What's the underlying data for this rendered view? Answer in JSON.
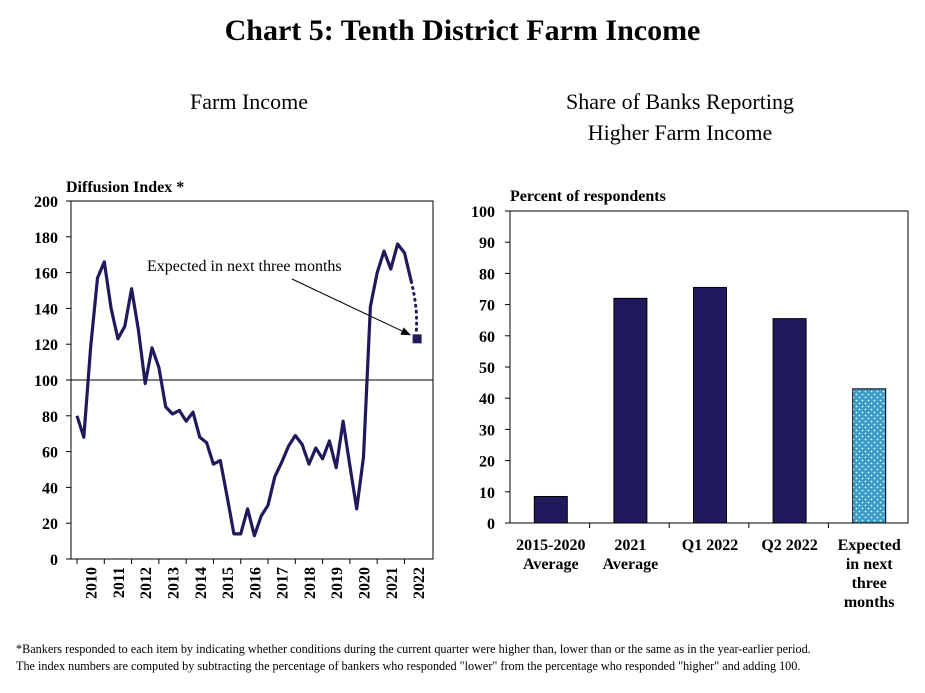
{
  "title": "Chart 5: Tenth District Farm Income",
  "footnote": {
    "line1": "*Bankers responded to each item by indicating whether conditions during the current quarter were higher than,  lower than or the same as in the year-earlier period.",
    "line2": "The index numbers are computed by subtracting the percentage of bankers who responded \"lower\" from the percentage who responded \"higher\" and adding 100."
  },
  "chart_data": [
    {
      "type": "line",
      "title": "Farm Income",
      "ylabel": "Diffusion  Index  *",
      "ylim": [
        0,
        200
      ],
      "yticks": [
        0,
        20,
        40,
        60,
        80,
        100,
        120,
        140,
        160,
        180,
        200
      ],
      "xticks": [
        "2010",
        "2011",
        "2012",
        "2013",
        "2014",
        "2015",
        "2016",
        "2017",
        "2018",
        "2019",
        "2020",
        "2021",
        "2022"
      ],
      "reference_line": 100,
      "grid": false,
      "color": "#1e1a5c",
      "series": [
        {
          "values": [
            {
              "x": "2010Q1",
              "y": 80
            },
            {
              "x": "2010Q2",
              "y": 68
            },
            {
              "x": "2010Q3",
              "y": 118
            },
            {
              "x": "2010Q4",
              "y": 157
            },
            {
              "x": "2011Q1",
              "y": 166
            },
            {
              "x": "2011Q2",
              "y": 140
            },
            {
              "x": "2011Q3",
              "y": 123
            },
            {
              "x": "2011Q4",
              "y": 130
            },
            {
              "x": "2012Q1",
              "y": 151
            },
            {
              "x": "2012Q2",
              "y": 128
            },
            {
              "x": "2012Q3",
              "y": 98
            },
            {
              "x": "2012Q4",
              "y": 118
            },
            {
              "x": "2013Q1",
              "y": 107
            },
            {
              "x": "2013Q2",
              "y": 85
            },
            {
              "x": "2013Q3",
              "y": 81
            },
            {
              "x": "2013Q4",
              "y": 83
            },
            {
              "x": "2014Q1",
              "y": 77
            },
            {
              "x": "2014Q2",
              "y": 82
            },
            {
              "x": "2014Q3",
              "y": 68
            },
            {
              "x": "2014Q4",
              "y": 65
            },
            {
              "x": "2015Q1",
              "y": 53
            },
            {
              "x": "2015Q2",
              "y": 55
            },
            {
              "x": "2015Q3",
              "y": 35
            },
            {
              "x": "2015Q4",
              "y": 14
            },
            {
              "x": "2016Q1",
              "y": 14
            },
            {
              "x": "2016Q2",
              "y": 28
            },
            {
              "x": "2016Q3",
              "y": 13
            },
            {
              "x": "2016Q4",
              "y": 24
            },
            {
              "x": "2017Q1",
              "y": 30
            },
            {
              "x": "2017Q2",
              "y": 46
            },
            {
              "x": "2017Q3",
              "y": 54
            },
            {
              "x": "2017Q4",
              "y": 63
            },
            {
              "x": "2018Q1",
              "y": 69
            },
            {
              "x": "2018Q2",
              "y": 64
            },
            {
              "x": "2018Q3",
              "y": 53
            },
            {
              "x": "2018Q4",
              "y": 62
            },
            {
              "x": "2019Q1",
              "y": 56
            },
            {
              "x": "2019Q2",
              "y": 66
            },
            {
              "x": "2019Q3",
              "y": 51
            },
            {
              "x": "2019Q4",
              "y": 77
            },
            {
              "x": "2020Q1",
              "y": 52
            },
            {
              "x": "2020Q2",
              "y": 28
            },
            {
              "x": "2020Q3",
              "y": 57
            },
            {
              "x": "2020Q4",
              "y": 141
            },
            {
              "x": "2021Q1",
              "y": 160
            },
            {
              "x": "2021Q2",
              "y": 172
            },
            {
              "x": "2021Q3",
              "y": 162
            },
            {
              "x": "2021Q4",
              "y": 176
            },
            {
              "x": "2022Q1",
              "y": 171
            },
            {
              "x": "2022Q2",
              "y": 155
            }
          ]
        }
      ],
      "expected": {
        "x": "2022Q3",
        "y": 123,
        "label": "Expected in next three months"
      }
    },
    {
      "type": "bar",
      "title_lines": [
        "Share of Banks Reporting",
        "Higher Farm Income"
      ],
      "ylabel": "Percent of respondents",
      "ylim": [
        0,
        100
      ],
      "yticks": [
        0,
        10,
        20,
        30,
        40,
        50,
        60,
        70,
        80,
        90,
        100
      ],
      "categories": [
        [
          "2015-2020",
          "Average"
        ],
        [
          "2021",
          "Average"
        ],
        [
          "Q1 2022"
        ],
        [
          "Q2 2022"
        ],
        [
          "Expected",
          "in next",
          "three",
          "months"
        ]
      ],
      "values": [
        8.5,
        72,
        75.5,
        65.5,
        43
      ],
      "colors": [
        "#1e1a5c",
        "#1e1a5c",
        "#1e1a5c",
        "#1e1a5c",
        "#3a9cc9"
      ],
      "patterned": [
        false,
        false,
        false,
        false,
        true
      ]
    }
  ]
}
